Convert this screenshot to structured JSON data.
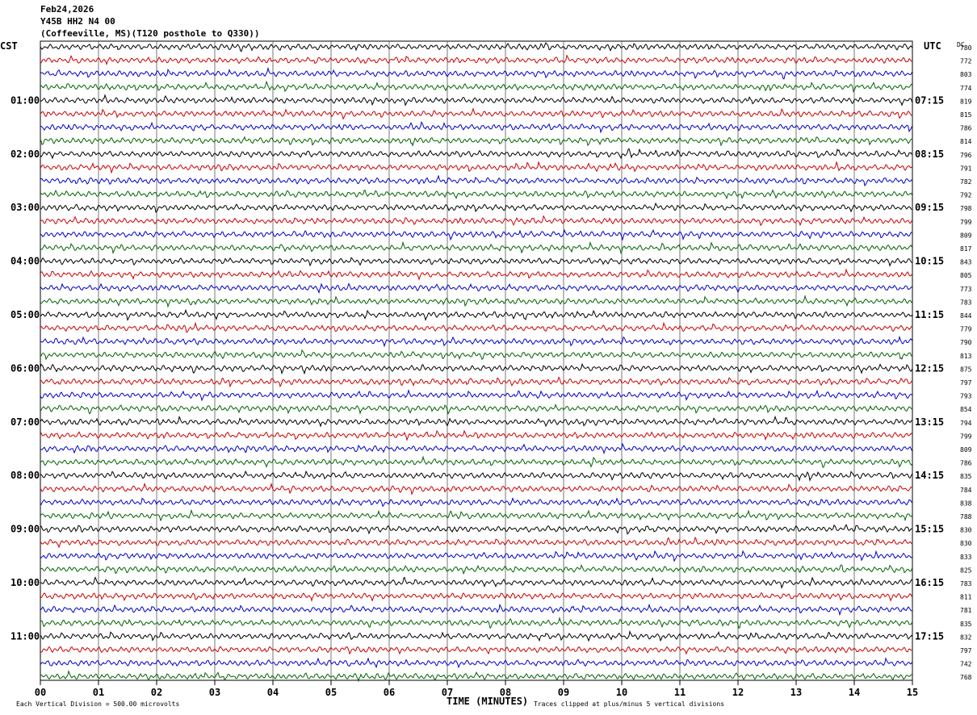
{
  "header": {
    "date": "Feb24,2026",
    "station": "Y45B HH2 N4 00",
    "location": "(Coffeeville, MS)(T120 posthole to Q330))"
  },
  "chart_data": {
    "type": "line",
    "title": "Y45B HH2 N4 00",
    "left_timezone": "CST",
    "right_timezone": "UTC",
    "dc_label": "DC",
    "xlabel": "TIME (MINUTES)",
    "x_ticks": [
      "00",
      "01",
      "02",
      "03",
      "04",
      "05",
      "06",
      "07",
      "08",
      "09",
      "10",
      "11",
      "12",
      "13",
      "14",
      "15"
    ],
    "xlim": [
      0,
      15
    ],
    "grid": true,
    "rows_per_hour": 4,
    "row_colors": [
      "#000000",
      "#cc0000",
      "#0000cc",
      "#006400"
    ],
    "left_hour_labels": [
      "01:00",
      "02:00",
      "03:00",
      "04:00",
      "05:00",
      "06:00",
      "07:00",
      "08:00",
      "09:00",
      "10:00",
      "11:00"
    ],
    "right_hour_labels": [
      "07:15",
      "08:15",
      "09:15",
      "10:15",
      "11:15",
      "12:15",
      "13:15",
      "14:15",
      "15:15",
      "16:15",
      "17:15"
    ],
    "dc_offsets": [
      "780",
      "772",
      "803",
      "774",
      "819",
      "815",
      "786",
      "814",
      "796",
      "791",
      "782",
      "792",
      "798",
      "799",
      "809",
      "817",
      "843",
      "805",
      "773",
      "783",
      "844",
      "779",
      "790",
      "813",
      "875",
      "797",
      "793",
      "854",
      "794",
      "799",
      "809",
      "786",
      "835",
      "784",
      "838",
      "788",
      "830",
      "830",
      "833",
      "825",
      "783",
      "811",
      "781",
      "835",
      "832",
      "797",
      "742",
      "768"
    ],
    "footer_left": "Each Vertical Division =  500.00 microvolts",
    "footer_right": "Traces clipped at plus/minus 5 vertical divisions"
  }
}
